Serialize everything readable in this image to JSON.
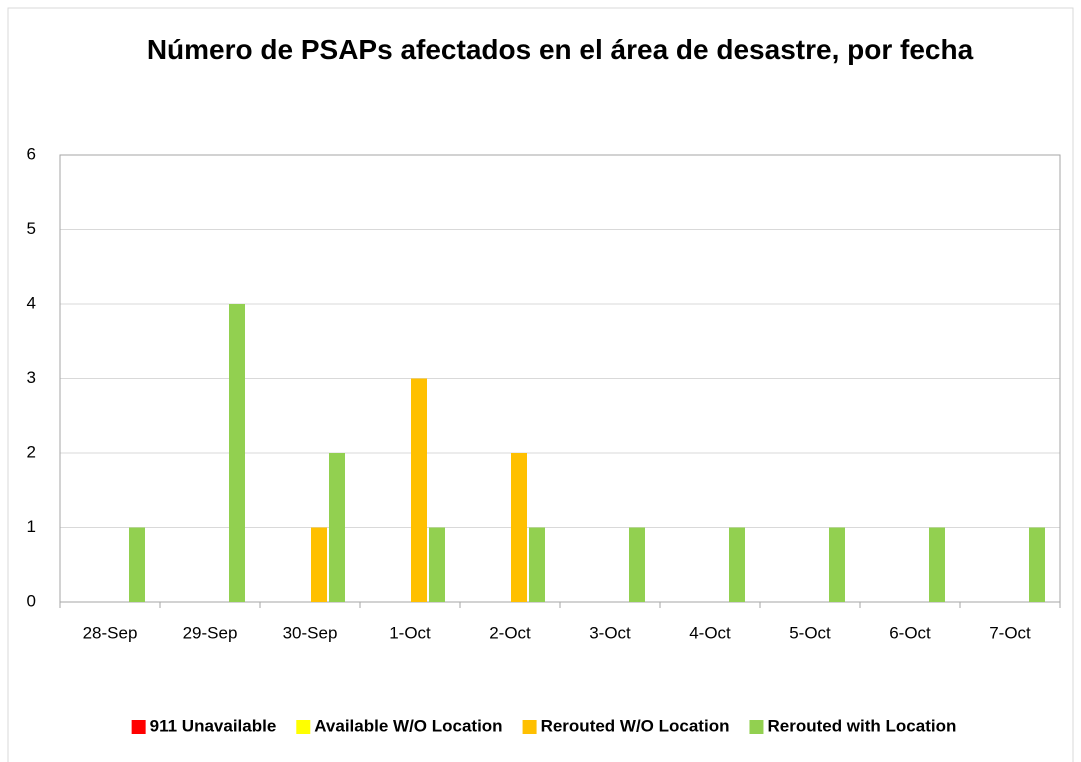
{
  "chart_data": {
    "type": "bar",
    "title": "Número de PSAPs afectados en el área de desastre, por fecha",
    "categories": [
      "28-Sep",
      "29-Sep",
      "30-Sep",
      "1-Oct",
      "2-Oct",
      "3-Oct",
      "4-Oct",
      "5-Oct",
      "6-Oct",
      "7-Oct"
    ],
    "series": [
      {
        "name": "911 Unavailable",
        "color": "#ff0000",
        "values": [
          0,
          0,
          0,
          0,
          0,
          0,
          0,
          0,
          0,
          0
        ]
      },
      {
        "name": "Available W/O Location",
        "color": "#ffff00",
        "values": [
          0,
          0,
          0,
          0,
          0,
          0,
          0,
          0,
          0,
          0
        ]
      },
      {
        "name": "Rerouted W/O Location",
        "color": "#ffc000",
        "values": [
          0,
          0,
          1,
          3,
          2,
          0,
          0,
          0,
          0,
          0
        ]
      },
      {
        "name": "Rerouted with Location",
        "color": "#92d050",
        "values": [
          1,
          4,
          2,
          1,
          1,
          1,
          1,
          1,
          1,
          1
        ]
      }
    ],
    "ylim": [
      0,
      6
    ],
    "yticks": [
      0,
      1,
      2,
      3,
      4,
      5,
      6
    ],
    "grid": true,
    "legend": "bottom"
  }
}
